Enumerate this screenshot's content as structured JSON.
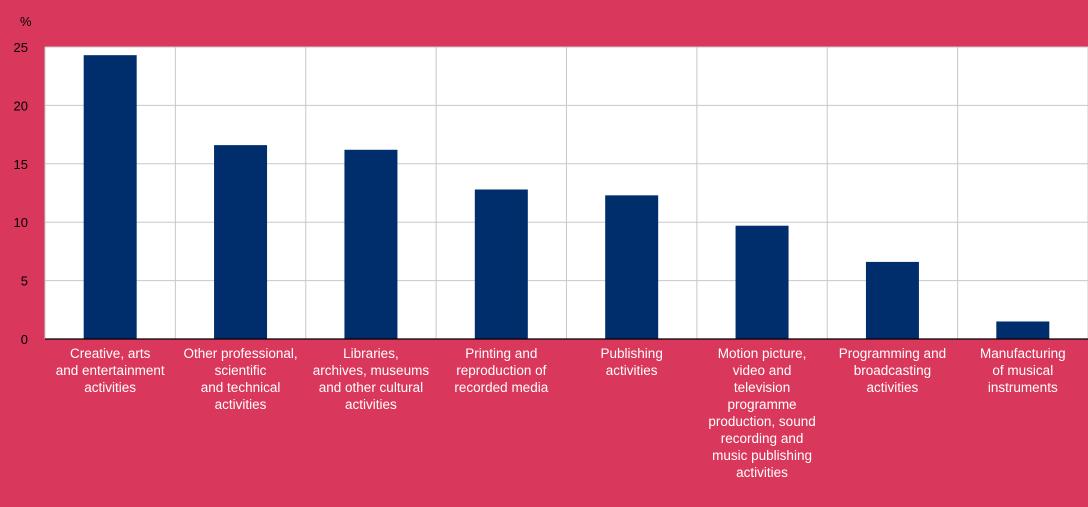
{
  "chart_data": {
    "type": "bar",
    "y_unit_label": "%",
    "categories": [
      "Creative, arts\nand entertainment\nactivities",
      "Other professional,\nscientific\nand technical\nactivities",
      "Libraries,\narchives, museums\nand other cultural\nactivities",
      "Printing and\nreproduction of\nrecorded media",
      "Publishing\nactivities",
      "Motion picture,\nvideo and\ntelevision\nprogramme\nproduction, sound\nrecording and\nmusic publishing\nactivities",
      "Programming and\nbroadcasting\nactivities",
      "Manufacturing\nof musical\ninstruments"
    ],
    "values": [
      24.3,
      16.6,
      16.2,
      12.8,
      12.3,
      9.7,
      6.6,
      1.5
    ],
    "ylim": [
      0,
      25
    ],
    "yticks": [
      0,
      5,
      10,
      15,
      20,
      25
    ],
    "grid": true,
    "colors": {
      "background": "#d9375b",
      "plot_background": "#ffffff",
      "bar": "#002e6d",
      "grid": "#c8c8c8",
      "axis": "#000000",
      "text": "#000000",
      "label_text": "#ffffff"
    }
  }
}
